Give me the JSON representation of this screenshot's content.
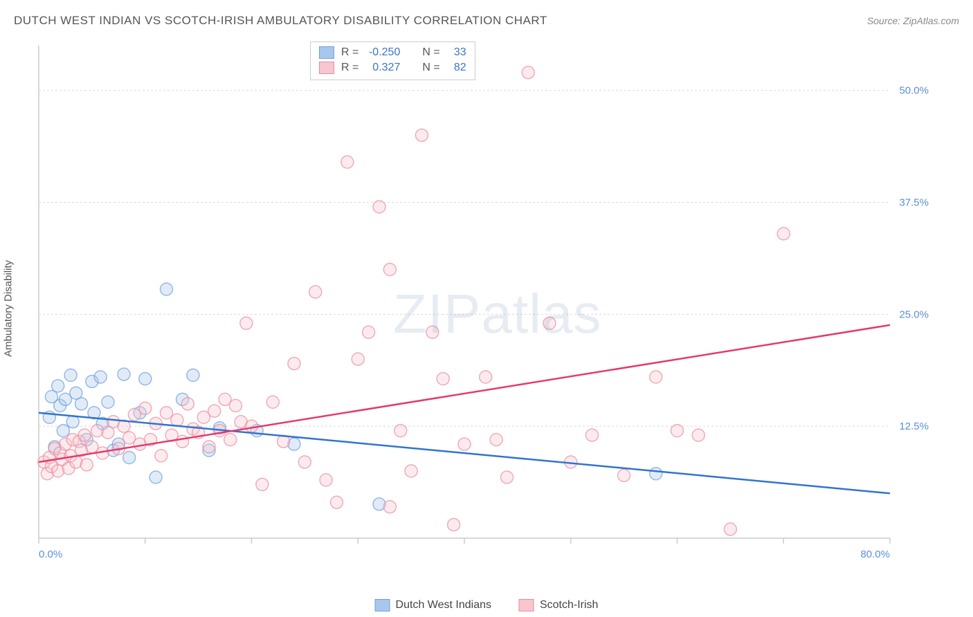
{
  "title": "DUTCH WEST INDIAN VS SCOTCH-IRISH AMBULATORY DISABILITY CORRELATION CHART",
  "source": "Source: ZipAtlas.com",
  "yaxis_label": "Ambulatory Disability",
  "watermark_bold": "ZIP",
  "watermark_light": "atlas",
  "chart": {
    "type": "scatter",
    "background_color": "#ffffff",
    "grid_color": "#d9d9d9",
    "grid_dash": "3,3",
    "axis_line_color": "#cccccc",
    "tick_label_color": "#5b8fd6",
    "xlim": [
      0,
      80
    ],
    "ylim": [
      0,
      55
    ],
    "x_ticks_minor_step": 10,
    "x_tick_labels": [
      {
        "x": 0,
        "label": "0.0%"
      },
      {
        "x": 80,
        "label": "80.0%"
      }
    ],
    "y_tick_labels": [
      {
        "y": 12.5,
        "label": "12.5%"
      },
      {
        "y": 25.0,
        "label": "25.0%"
      },
      {
        "y": 37.5,
        "label": "37.5%"
      },
      {
        "y": 50.0,
        "label": "50.0%"
      }
    ],
    "marker_radius": 9,
    "marker_fill_opacity": 0.35,
    "marker_stroke_opacity": 0.7,
    "line_width": 2.5,
    "series": [
      {
        "name": "Dutch West Indians",
        "color_fill": "#a9c7ec",
        "color_stroke": "#6ea0dc",
        "line_color": "#2f74d0",
        "R": "-0.250",
        "N": "33",
        "points": [
          [
            1.0,
            13.5
          ],
          [
            1.2,
            15.8
          ],
          [
            1.5,
            10.2
          ],
          [
            1.8,
            17.0
          ],
          [
            2.0,
            14.8
          ],
          [
            2.3,
            12.0
          ],
          [
            2.5,
            15.5
          ],
          [
            3.0,
            18.2
          ],
          [
            3.2,
            13.0
          ],
          [
            3.5,
            16.2
          ],
          [
            4.0,
            15.0
          ],
          [
            4.5,
            11.0
          ],
          [
            5.0,
            17.5
          ],
          [
            5.2,
            14.0
          ],
          [
            5.8,
            18.0
          ],
          [
            6.0,
            12.8
          ],
          [
            6.5,
            15.2
          ],
          [
            7.0,
            9.8
          ],
          [
            7.5,
            10.5
          ],
          [
            8.0,
            18.3
          ],
          [
            8.5,
            9.0
          ],
          [
            9.5,
            14.0
          ],
          [
            10.0,
            17.8
          ],
          [
            11.0,
            6.8
          ],
          [
            12.0,
            27.8
          ],
          [
            13.5,
            15.5
          ],
          [
            14.5,
            18.2
          ],
          [
            16.0,
            9.8
          ],
          [
            17.0,
            12.3
          ],
          [
            20.5,
            12.0
          ],
          [
            32.0,
            3.8
          ],
          [
            58.0,
            7.2
          ],
          [
            24.0,
            10.5
          ]
        ],
        "trend": {
          "x1": 0,
          "y1": 14.0,
          "x2": 80,
          "y2": 5.0
        }
      },
      {
        "name": "Scotch-Irish",
        "color_fill": "#f7c6cf",
        "color_stroke": "#e98ba0",
        "line_color": "#e33b6a",
        "R": "0.327",
        "N": "82",
        "points": [
          [
            0.5,
            8.5
          ],
          [
            0.8,
            7.2
          ],
          [
            1.0,
            9.0
          ],
          [
            1.2,
            8.0
          ],
          [
            1.5,
            10.0
          ],
          [
            1.8,
            7.5
          ],
          [
            2.0,
            9.5
          ],
          [
            2.2,
            8.8
          ],
          [
            2.5,
            10.5
          ],
          [
            2.8,
            7.8
          ],
          [
            3.0,
            9.2
          ],
          [
            3.2,
            11.0
          ],
          [
            3.5,
            8.5
          ],
          [
            3.8,
            10.8
          ],
          [
            4.0,
            9.8
          ],
          [
            4.3,
            11.5
          ],
          [
            4.5,
            8.2
          ],
          [
            5.0,
            10.2
          ],
          [
            5.5,
            12.0
          ],
          [
            6.0,
            9.5
          ],
          [
            6.5,
            11.8
          ],
          [
            7.0,
            13.0
          ],
          [
            7.5,
            10.0
          ],
          [
            8.0,
            12.5
          ],
          [
            8.5,
            11.2
          ],
          [
            9.0,
            13.8
          ],
          [
            9.5,
            10.5
          ],
          [
            10.0,
            14.5
          ],
          [
            10.5,
            11.0
          ],
          [
            11.0,
            12.8
          ],
          [
            11.5,
            9.2
          ],
          [
            12.0,
            14.0
          ],
          [
            12.5,
            11.5
          ],
          [
            13.0,
            13.2
          ],
          [
            13.5,
            10.8
          ],
          [
            14.0,
            15.0
          ],
          [
            14.5,
            12.2
          ],
          [
            15.0,
            11.8
          ],
          [
            15.5,
            13.5
          ],
          [
            16.0,
            10.2
          ],
          [
            16.5,
            14.2
          ],
          [
            17.0,
            12.0
          ],
          [
            17.5,
            15.5
          ],
          [
            18.0,
            11.0
          ],
          [
            18.5,
            14.8
          ],
          [
            19.0,
            13.0
          ],
          [
            19.5,
            24.0
          ],
          [
            20.0,
            12.5
          ],
          [
            21.0,
            6.0
          ],
          [
            22.0,
            15.2
          ],
          [
            23.0,
            10.8
          ],
          [
            24.0,
            19.5
          ],
          [
            25.0,
            8.5
          ],
          [
            26.0,
            27.5
          ],
          [
            27.0,
            6.5
          ],
          [
            28.0,
            4.0
          ],
          [
            29.0,
            42.0
          ],
          [
            30.0,
            20.0
          ],
          [
            31.0,
            23.0
          ],
          [
            32.0,
            37.0
          ],
          [
            33.0,
            30.0
          ],
          [
            33.0,
            3.5
          ],
          [
            34.0,
            12.0
          ],
          [
            35.0,
            7.5
          ],
          [
            36.0,
            45.0
          ],
          [
            37.0,
            23.0
          ],
          [
            38.0,
            17.8
          ],
          [
            39.0,
            1.5
          ],
          [
            40.0,
            10.5
          ],
          [
            42.0,
            18.0
          ],
          [
            43.0,
            11.0
          ],
          [
            44.0,
            6.8
          ],
          [
            46.0,
            52.0
          ],
          [
            48.0,
            24.0
          ],
          [
            50.0,
            8.5
          ],
          [
            52.0,
            11.5
          ],
          [
            55.0,
            7.0
          ],
          [
            58.0,
            18.0
          ],
          [
            60.0,
            12.0
          ],
          [
            65.0,
            1.0
          ],
          [
            70.0,
            34.0
          ],
          [
            62.0,
            11.5
          ]
        ],
        "trend": {
          "x1": 0,
          "y1": 8.5,
          "x2": 80,
          "y2": 23.8
        }
      }
    ]
  },
  "bottom_legend": [
    {
      "label": "Dutch West Indians",
      "fill": "#a9c7ec",
      "stroke": "#6ea0dc"
    },
    {
      "label": "Scotch-Irish",
      "fill": "#f7c6cf",
      "stroke": "#e98ba0"
    }
  ]
}
